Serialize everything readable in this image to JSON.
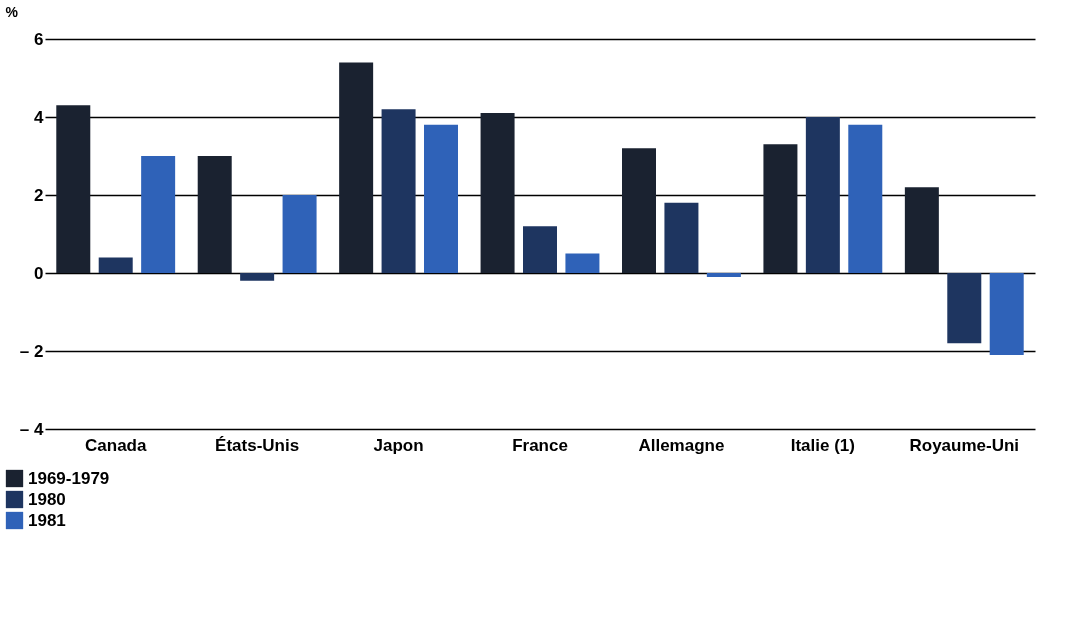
{
  "chart_data": {
    "type": "bar",
    "ylabel": "%",
    "categories": [
      "Canada",
      "États-Unis",
      "Japon",
      "France",
      "Allemagne",
      "Italie (1)",
      "Royaume-Uni"
    ],
    "series": [
      {
        "name": "1969-1979",
        "color": "#1a2230",
        "values": [
          4.3,
          3.0,
          5.4,
          4.1,
          3.2,
          3.3,
          2.2
        ]
      },
      {
        "name": "1980",
        "color": "#1e3560",
        "values": [
          0.4,
          -0.2,
          4.2,
          1.2,
          1.8,
          4.0,
          -1.8
        ]
      },
      {
        "name": "1981",
        "color": "#2f62b8",
        "values": [
          3.0,
          2.0,
          3.8,
          0.5,
          -0.1,
          3.8,
          -2.1
        ]
      }
    ],
    "ylim": [
      -4,
      6
    ],
    "yticks": [
      {
        "value": -4,
        "label": "– 4"
      },
      {
        "value": -2,
        "label": "– 2"
      },
      0,
      2,
      4,
      6
    ],
    "grid": "y",
    "legend": "bottom left"
  }
}
